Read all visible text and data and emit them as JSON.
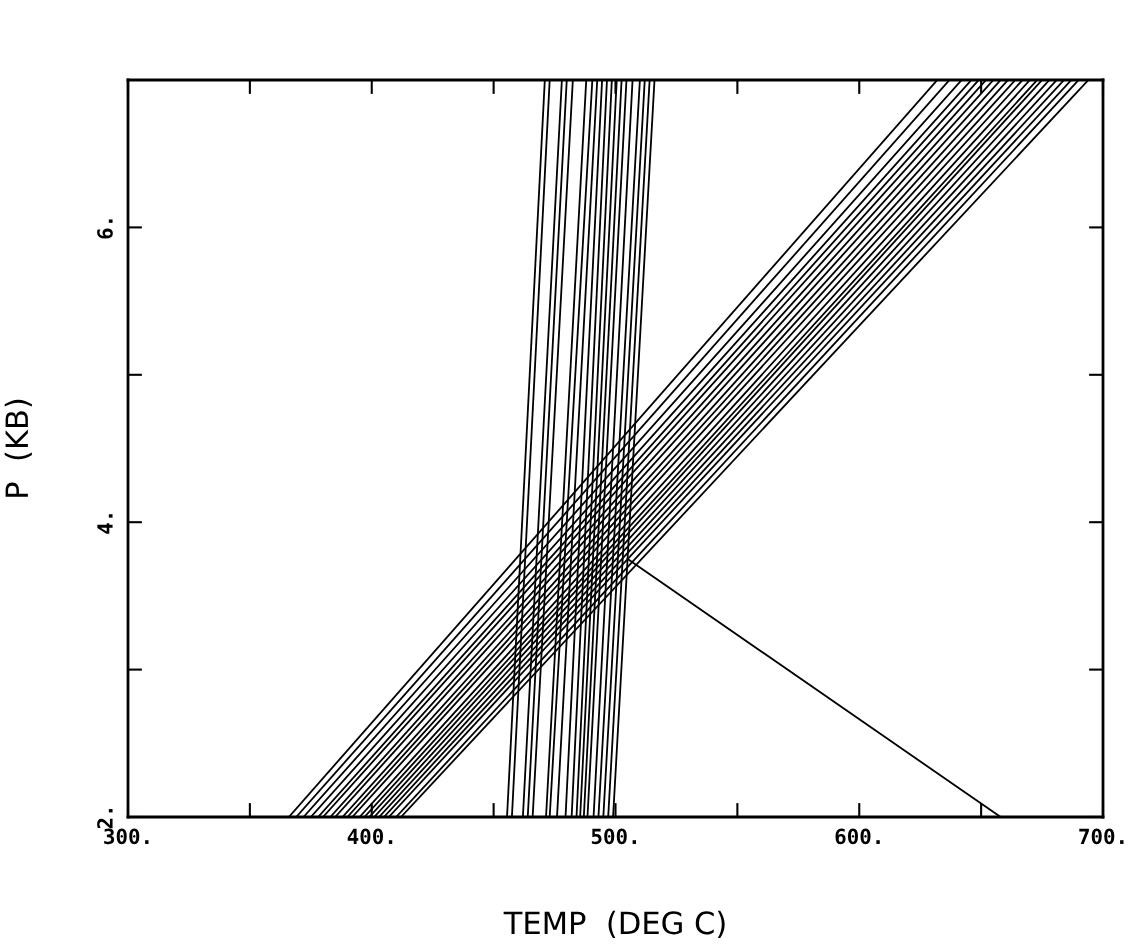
{
  "chart_data": {
    "type": "line",
    "xlabel": "TEMP  (DEG C)",
    "ylabel": "P  (KB)",
    "xlim": [
      300,
      700
    ],
    "ylim": [
      2,
      7
    ],
    "xticks": [
      {
        "value": 300,
        "label": "300."
      },
      {
        "value": 350,
        "label": null
      },
      {
        "value": 400,
        "label": "400."
      },
      {
        "value": 450,
        "label": null
      },
      {
        "value": 500,
        "label": "500."
      },
      {
        "value": 550,
        "label": null
      },
      {
        "value": 600,
        "label": "600."
      },
      {
        "value": 650,
        "label": null
      },
      {
        "value": 700,
        "label": "700."
      }
    ],
    "yticks": [
      {
        "value": 2,
        "label": "2."
      },
      {
        "value": 3,
        "label": null
      },
      {
        "value": 4,
        "label": "4."
      },
      {
        "value": 5,
        "label": null
      },
      {
        "value": 6,
        "label": "6."
      }
    ],
    "grid": false,
    "legend": false,
    "marker": "none",
    "line_style": "solid",
    "series": [
      {
        "color": "#000000",
        "x": [
          455.5,
          471
        ],
        "values": [
          2,
          7
        ]
      },
      {
        "color": "#000000",
        "x": [
          457.5,
          473
        ],
        "values": [
          2,
          7
        ]
      },
      {
        "color": "#000000",
        "x": [
          462,
          478
        ],
        "values": [
          2,
          7
        ]
      },
      {
        "color": "#000000",
        "x": [
          464,
          480
        ],
        "values": [
          2,
          7
        ]
      },
      {
        "color": "#000000",
        "x": [
          466,
          482.5
        ],
        "values": [
          2,
          7
        ]
      },
      {
        "color": "#000000",
        "x": [
          471.5,
          488
        ],
        "values": [
          2,
          7
        ]
      },
      {
        "color": "#000000",
        "x": [
          473,
          490.5
        ],
        "values": [
          2,
          7
        ]
      },
      {
        "color": "#000000",
        "x": [
          476,
          492.5
        ],
        "values": [
          2,
          7
        ]
      },
      {
        "color": "#000000",
        "x": [
          479.5,
          494.5
        ],
        "values": [
          2,
          7
        ]
      },
      {
        "color": "#000000",
        "x": [
          482,
          496.5
        ],
        "values": [
          2,
          7
        ]
      },
      {
        "color": "#000000",
        "x": [
          484,
          498.5
        ],
        "values": [
          2,
          7
        ]
      },
      {
        "color": "#000000",
        "x": [
          485.5,
          500.5
        ],
        "values": [
          2,
          7
        ]
      },
      {
        "color": "#000000",
        "x": [
          487,
          502.5
        ],
        "values": [
          2,
          7
        ]
      },
      {
        "color": "#000000",
        "x": [
          488.5,
          504.5
        ],
        "values": [
          2,
          7
        ]
      },
      {
        "color": "#000000",
        "x": [
          491,
          507
        ],
        "values": [
          2,
          7
        ]
      },
      {
        "color": "#000000",
        "x": [
          493,
          510
        ],
        "values": [
          2,
          7
        ]
      },
      {
        "color": "#000000",
        "x": [
          495,
          512
        ],
        "values": [
          2,
          7
        ]
      },
      {
        "color": "#000000",
        "x": [
          497,
          514
        ],
        "values": [
          2,
          7
        ]
      },
      {
        "color": "#000000",
        "x": [
          499,
          516
        ],
        "values": [
          2,
          7
        ]
      },
      {
        "color": "#000000",
        "x": [
          366,
          632
        ],
        "values": [
          2,
          7
        ]
      },
      {
        "color": "#000000",
        "x": [
          369,
          637
        ],
        "values": [
          2,
          7
        ]
      },
      {
        "color": "#000000",
        "x": [
          372,
          642
        ],
        "values": [
          2,
          7
        ]
      },
      {
        "color": "#000000",
        "x": [
          375,
          646
        ],
        "values": [
          2,
          7
        ]
      },
      {
        "color": "#000000",
        "x": [
          378,
          649
        ],
        "values": [
          2,
          7
        ]
      },
      {
        "color": "#000000",
        "x": [
          380,
          652
        ],
        "values": [
          2,
          7
        ]
      },
      {
        "color": "#000000",
        "x": [
          383,
          655
        ],
        "values": [
          2,
          7
        ]
      },
      {
        "color": "#000000",
        "x": [
          385,
          658
        ],
        "values": [
          2,
          7
        ]
      },
      {
        "color": "#000000",
        "x": [
          388,
          661
        ],
        "values": [
          2,
          7
        ]
      },
      {
        "color": "#000000",
        "x": [
          390,
          664
        ],
        "values": [
          2,
          7
        ]
      },
      {
        "color": "#000000",
        "x": [
          392,
          667
        ],
        "values": [
          2,
          7
        ]
      },
      {
        "color": "#000000",
        "x": [
          395,
          670
        ],
        "values": [
          2,
          7
        ]
      },
      {
        "color": "#000000",
        "x": [
          397,
          673
        ],
        "values": [
          2,
          7
        ]
      },
      {
        "color": "#000000",
        "x": [
          399,
          675
        ],
        "values": [
          2,
          7
        ]
      },
      {
        "color": "#000000",
        "x": [
          401,
          678
        ],
        "values": [
          2,
          7
        ]
      },
      {
        "color": "#000000",
        "x": [
          403,
          681
        ],
        "values": [
          2,
          7
        ]
      },
      {
        "color": "#000000",
        "x": [
          405,
          684
        ],
        "values": [
          2,
          7
        ]
      },
      {
        "color": "#000000",
        "x": [
          407,
          687
        ],
        "values": [
          2,
          7
        ]
      },
      {
        "color": "#000000",
        "x": [
          410,
          690
        ],
        "values": [
          2,
          7
        ]
      },
      {
        "color": "#000000",
        "x": [
          412,
          694
        ],
        "values": [
          2,
          7
        ]
      },
      {
        "color": "#000000",
        "x": [
          505,
          658
        ],
        "values": [
          3.75,
          2
        ]
      }
    ]
  }
}
